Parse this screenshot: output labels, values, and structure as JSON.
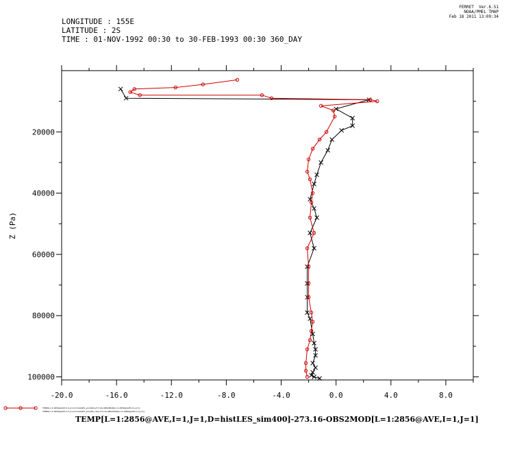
{
  "header": {
    "longitude": "LONGITUDE : 155E",
    "latitude": "LATITUDE : 2S",
    "time": "TIME : 01-NOV-1992 00:30 to 30-FEB-1993 00:30 360_DAY"
  },
  "stamp": {
    "line1": "FERRET  Ver.6.51",
    "line2": "NOAA/PMEL TMAP",
    "line3": "Feb 18 2011 13:09:34"
  },
  "colors": {
    "series1": "#000000",
    "series2": "#cc0000"
  },
  "legend": {
    "line1": "TEMP[L=1:2856@AVE,I=1,J=1,D=histLES_sim400]-273.16-OBS2MOD[L=1:2856@AVE,I=1,J=1]",
    "line2": "TEMP[L=1:2856@AVE,I=1,J=1,D=histLES_sim400_ctrl]-273.16-OBS2MOD[L=1:2856@AVE,I=1,J=1]"
  },
  "chart_data": {
    "type": "line",
    "xlabel": "",
    "ylabel": "Z (Pa)",
    "title": "TEMP[L=1:2856@AVE,I=1,J=1,D=histLES_sim400]-273.16-OBS2MOD[L=1:2856@AVE,I=1,J=1]",
    "xlim": [
      -20,
      10
    ],
    "ylim": [
      101000,
      0
    ],
    "y_inverted": true,
    "xticks": [
      -20,
      -16,
      -12,
      -8,
      -4,
      0,
      4,
      8
    ],
    "xtick_labels": [
      "-20.0",
      "-16.0",
      "-12.0",
      "-8.0",
      "-4.0",
      "0.0",
      "4.0",
      "8.0"
    ],
    "yticks": [
      20000,
      40000,
      60000,
      80000,
      100000
    ],
    "ytick_labels": [
      "20000",
      "40000",
      "60000",
      "80000",
      "100000"
    ],
    "grid": false,
    "series": [
      {
        "marker": "x",
        "color": "#000000",
        "x": [
          -15.7,
          -15.3,
          2.4,
          0.0,
          1.2,
          1.2,
          0.4,
          -0.3,
          -0.6,
          -1.1,
          -1.4,
          -1.6,
          -1.9,
          -1.6,
          -1.4,
          -1.9,
          -1.6,
          -2.1,
          -2.1,
          -2.1,
          -2.1,
          -1.9,
          -1.7,
          -1.6,
          -1.5,
          -1.5,
          -1.7,
          -1.5,
          -1.7,
          -1.8,
          -1.6,
          -1.2
        ],
        "y": [
          6000,
          9000,
          9500,
          12500,
          15500,
          18000,
          19500,
          22500,
          26000,
          30000,
          34000,
          37000,
          42000,
          45000,
          48000,
          53000,
          58000,
          64000,
          69500,
          74000,
          79000,
          81000,
          86000,
          89000,
          91000,
          93000,
          95500,
          97000,
          98500,
          99500,
          100000,
          100500
        ]
      },
      {
        "marker": "o",
        "color": "#cc0000",
        "x": [
          -7.2,
          -9.7,
          -11.7,
          -14.7,
          -15.0,
          -14.3,
          -5.4,
          -4.7,
          2.5,
          3.0,
          -1.1,
          -0.2,
          -0.1,
          -0.7,
          -1.2,
          -1.7,
          -2.0,
          -2.1,
          -1.9,
          -1.7,
          -1.8,
          -1.9,
          -1.6,
          -2.1,
          -2.0,
          -2.0,
          -2.0,
          -1.8,
          -1.7,
          -1.8,
          -1.9,
          -2.1,
          -2.2,
          -2.2,
          -2.1
        ],
        "y": [
          3000,
          4500,
          5500,
          6000,
          7000,
          8000,
          8000,
          9000,
          9500,
          10000,
          11500,
          13000,
          15000,
          20000,
          22500,
          25500,
          29000,
          33000,
          35500,
          40000,
          43000,
          48000,
          53000,
          58000,
          64000,
          69500,
          74000,
          79000,
          82000,
          85000,
          88000,
          91000,
          95500,
          98000,
          100000
        ]
      }
    ]
  }
}
